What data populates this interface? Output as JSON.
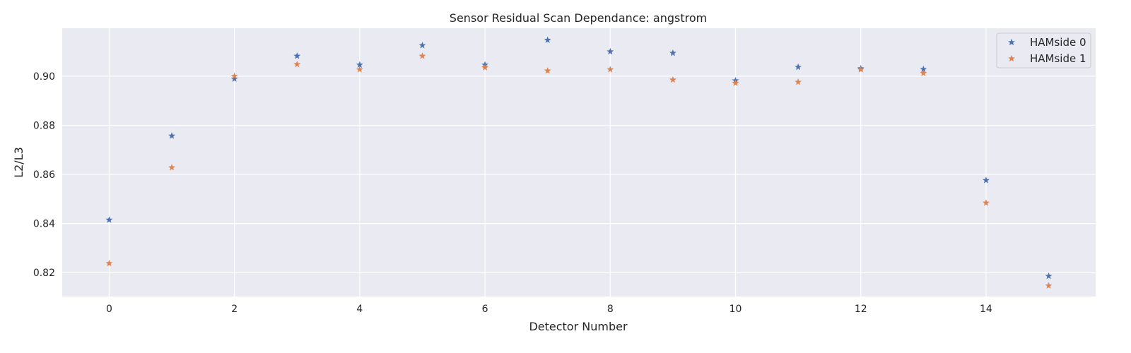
{
  "chart_data": {
    "type": "scatter",
    "title": "Sensor Residual Scan Dependance: angstrom",
    "xlabel": "Detector Number",
    "ylabel": "L2/L3",
    "xlim": [
      -0.75,
      15.75
    ],
    "ylim": [
      0.8103,
      0.9195
    ],
    "xticks": [
      0,
      2,
      4,
      6,
      8,
      10,
      12,
      14
    ],
    "yticks": [
      0.82,
      0.84,
      0.86,
      0.88,
      0.9
    ],
    "ytick_labels": [
      "0.82",
      "0.84",
      "0.86",
      "0.88",
      "0.90"
    ],
    "grid": true,
    "background": "#eaeaf2",
    "legend_position": "top-right",
    "marker": "star",
    "series": [
      {
        "name": "HAMside 0",
        "color": "#4c72b0",
        "x": [
          0,
          1,
          2,
          3,
          4,
          5,
          6,
          7,
          8,
          9,
          10,
          11,
          12,
          13,
          14,
          15
        ],
        "y": [
          0.8415,
          0.8757,
          0.8989,
          0.9082,
          0.9046,
          0.9125,
          0.9046,
          0.9147,
          0.91,
          0.9094,
          0.8982,
          0.9037,
          0.9031,
          0.9028,
          0.8576,
          0.8186
        ]
      },
      {
        "name": "HAMside 1",
        "color": "#dd8452",
        "x": [
          0,
          1,
          2,
          3,
          4,
          5,
          6,
          7,
          8,
          9,
          10,
          11,
          12,
          13,
          14,
          15
        ],
        "y": [
          0.8238,
          0.8628,
          0.9,
          0.9048,
          0.9027,
          0.9082,
          0.9035,
          0.9022,
          0.9027,
          0.8985,
          0.8972,
          0.8976,
          0.9027,
          0.9012,
          0.8484,
          0.8147
        ]
      }
    ]
  }
}
